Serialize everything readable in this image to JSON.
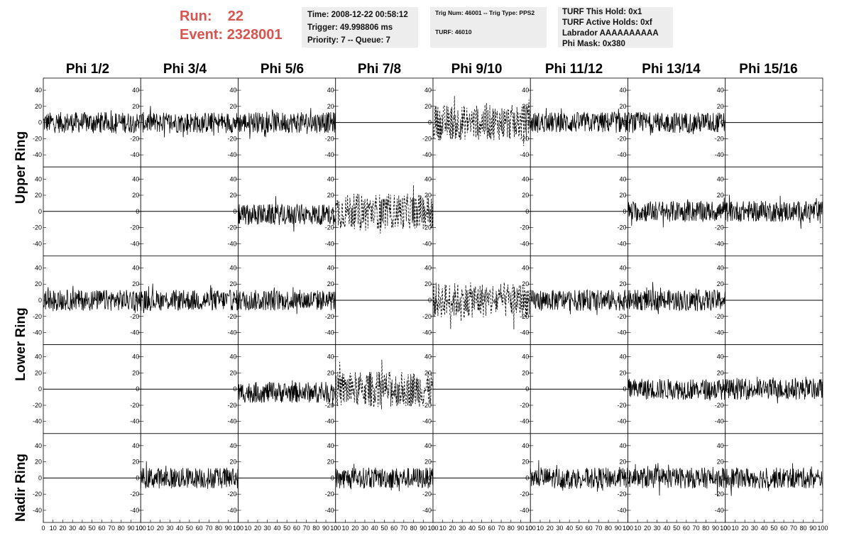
{
  "header": {
    "run_label": "Run:",
    "run_value": "22",
    "event_label": "Event:",
    "event_value": "2328001",
    "accent_color": "#d9534f"
  },
  "info_box_1": {
    "time": "Time: 2008-12-22 00:58:12",
    "trigger": "Trigger: 49.998806 ms",
    "priority": "Priority: 7 -- Queue: 7"
  },
  "info_box_2": {
    "trig": "Trig Num: 46001 -- Trig Type: PPS2",
    "turf": "TURF: 46010"
  },
  "info_box_3": {
    "hold": "TURF This Hold: 0x1",
    "active_holds": "TURF Active Holds: 0xf",
    "labrador": "Labrador AAAAAAAAAA",
    "phi_mask": "Phi Mask: 0x380"
  },
  "columns": [
    "Phi 1/2",
    "Phi 3/4",
    "Phi 5/6",
    "Phi 7/8",
    "Phi 9/10",
    "Phi 11/12",
    "Phi 13/14",
    "Phi 15/16"
  ],
  "ring_labels": [
    "Upper Ring",
    "Lower Ring",
    "Nadir Ring"
  ],
  "y_ticks": [
    "40",
    "20",
    "0",
    "-20",
    "-40"
  ],
  "x_tick_labels": [
    "0",
    "10",
    "20",
    "30",
    "40",
    "50",
    "60",
    "70",
    "80",
    "90",
    "100"
  ],
  "x_axis_range": [
    0,
    100
  ],
  "y_axis_range": [
    -55,
    55
  ],
  "waveform_rows": [
    [
      "solid",
      "solid",
      "solid",
      "flat",
      "dashed",
      "solid",
      "solid",
      "flat"
    ],
    [
      "flat",
      "flat",
      "solid",
      "dashed",
      "flat",
      "flat",
      "solid",
      "solid"
    ],
    [
      "solid",
      "solid",
      "solid",
      "flat",
      "dashed",
      "solid",
      "solid",
      "flat"
    ],
    [
      "flat",
      "flat",
      "solid",
      "dashed",
      "flat",
      "flat",
      "solid",
      "solid"
    ],
    [
      "flat",
      "solid",
      "flat",
      "solid",
      "flat",
      "solid",
      "solid",
      "solid"
    ]
  ]
}
